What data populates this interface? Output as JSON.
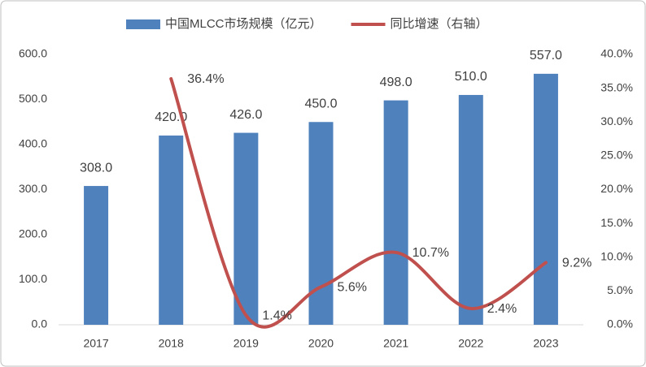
{
  "chart_data": {
    "type": "bar",
    "categories": [
      "2017",
      "2018",
      "2019",
      "2020",
      "2021",
      "2022",
      "2023"
    ],
    "series": [
      {
        "name": "中国MLCC市场规模（亿元）",
        "type": "bar",
        "color": "#4f81bd",
        "values": [
          308,
          420,
          426,
          450,
          498,
          510,
          557
        ],
        "value_labels": [
          "308.0",
          "420.0",
          "426.0",
          "450.0",
          "498.0",
          "510.0",
          "557.0"
        ]
      },
      {
        "name": "同比增速（右轴）",
        "type": "line",
        "axis": "y2",
        "color": "#c0504d",
        "values": [
          null,
          36.4,
          1.4,
          5.6,
          10.7,
          2.4,
          9.2
        ],
        "value_labels": [
          null,
          "36.4%",
          "1.4%",
          "5.6%",
          "10.7%",
          "2.4%",
          "9.2%"
        ]
      }
    ],
    "ylim": [
      0,
      600
    ],
    "yticks": [
      {
        "value": 0,
        "label": "0.0"
      },
      {
        "value": 100,
        "label": "100.0"
      },
      {
        "value": 200,
        "label": "200.0"
      },
      {
        "value": 300,
        "label": "300.0"
      },
      {
        "value": 400,
        "label": "400.0"
      },
      {
        "value": 500,
        "label": "500.0"
      },
      {
        "value": 600,
        "label": "600.0"
      }
    ],
    "y2lim": [
      0,
      40
    ],
    "y2ticks": [
      {
        "value": 0,
        "label": "0.0%"
      },
      {
        "value": 5,
        "label": "5.0%"
      },
      {
        "value": 10,
        "label": "10.0%"
      },
      {
        "value": 15,
        "label": "15.0%"
      },
      {
        "value": 20,
        "label": "20.0%"
      },
      {
        "value": 25,
        "label": "25.0%"
      },
      {
        "value": 30,
        "label": "30.0%"
      },
      {
        "value": 35,
        "label": "35.0%"
      },
      {
        "value": 40,
        "label": "40.0%"
      }
    ],
    "legend": "top"
  }
}
